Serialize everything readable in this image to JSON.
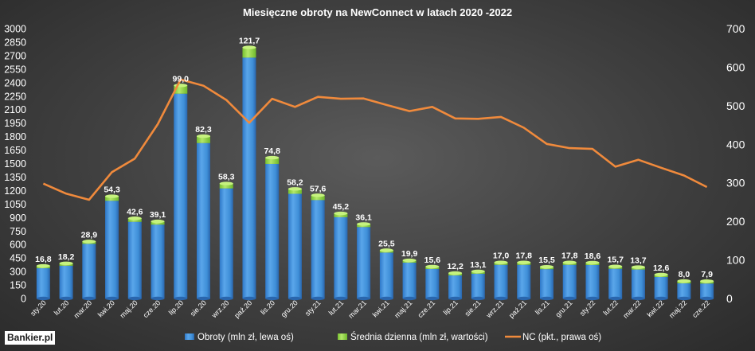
{
  "chart_data": {
    "type": "bar",
    "title": "Miesięczne obroty na NewConnect w latach 2020 -2022",
    "categories": [
      "sty.20",
      "lut.20",
      "mar.20",
      "kwi.20",
      "maj.20",
      "cze.20",
      "lip.20",
      "sie.20",
      "wrz.20",
      "paź.20",
      "lis.20",
      "gru.20",
      "sty.21",
      "lut.21",
      "mar.21",
      "kwi.21",
      "maj.21",
      "cze.21",
      "lip.21",
      "sie.21",
      "wrz.21",
      "paź.21",
      "lis.21",
      "gru.21",
      "sty.22",
      "lut.22",
      "mar.22",
      "kwi.22",
      "maj.22",
      "cze.22"
    ],
    "series": [
      {
        "name": "Obroty (mln zł, lewa oś)",
        "type": "bar",
        "axis": "left",
        "color": "#3f8fd8",
        "values": [
          336,
          364,
          607,
          1086,
          852,
          821,
          2277,
          1728,
          1224,
          2678,
          1496,
          1164,
          1094,
          904,
          794,
          510,
          398,
          328,
          256,
          275,
          374,
          374,
          326,
          374,
          372,
          330,
          322,
          239,
          168,
          166
        ]
      },
      {
        "name": "Średnia dzienna (mln zł, wartości)",
        "type": "bar-cap",
        "color": "#8fd13f",
        "values": [
          16.8,
          18.2,
          28.9,
          54.3,
          42.6,
          39.1,
          99.0,
          82.3,
          58.3,
          121.7,
          74.8,
          58.2,
          57.6,
          45.2,
          36.1,
          25.5,
          19.9,
          15.6,
          12.2,
          13.1,
          17.0,
          17.8,
          15.5,
          17.8,
          18.6,
          15.7,
          13.7,
          12.6,
          8.0,
          7.9
        ],
        "labels": [
          "16,8",
          "18,2",
          "28,9",
          "54,3",
          "42,6",
          "39,1",
          "99,0",
          "82,3",
          "58,3",
          "121,7",
          "74,8",
          "58,2",
          "57,6",
          "45,2",
          "36,1",
          "25,5",
          "19,9",
          "15,6",
          "12,2",
          "13,1",
          "17,0",
          "17,8",
          "15,5",
          "17,8",
          "18,6",
          "15,7",
          "13,7",
          "12,6",
          "8,0",
          "7,9"
        ]
      },
      {
        "name": "NC (pkt., prawa oś)",
        "type": "line",
        "axis": "right",
        "color": "#f08a3c",
        "values": [
          298,
          272,
          256,
          328,
          363,
          452,
          568,
          552,
          515,
          456,
          518,
          497,
          523,
          518,
          519,
          502,
          486,
          497,
          467,
          466,
          471,
          443,
          401,
          390,
          388,
          342,
          360,
          339,
          319,
          289
        ]
      }
    ],
    "left_axis": {
      "min": 0,
      "max": 3000,
      "step": 150,
      "ticks": [
        "0",
        "150",
        "300",
        "450",
        "600",
        "750",
        "900",
        "1050",
        "1200",
        "1350",
        "1500",
        "1650",
        "1800",
        "1950",
        "2100",
        "2250",
        "2400",
        "2550",
        "2700",
        "2850",
        "3000"
      ]
    },
    "right_axis": {
      "min": 0,
      "max": 700,
      "step": 100,
      "ticks": [
        "0",
        "100",
        "200",
        "300",
        "400",
        "500",
        "600",
        "700"
      ]
    },
    "legend_position": "bottom",
    "grid": false
  },
  "logo": {
    "text": "Bankier.pl"
  },
  "colors": {
    "bar_top": "#6fb4f0",
    "bar_side": "#2a6db5",
    "cap": "#8fd13f",
    "line": "#f08a3c",
    "text": "#ffffff"
  }
}
